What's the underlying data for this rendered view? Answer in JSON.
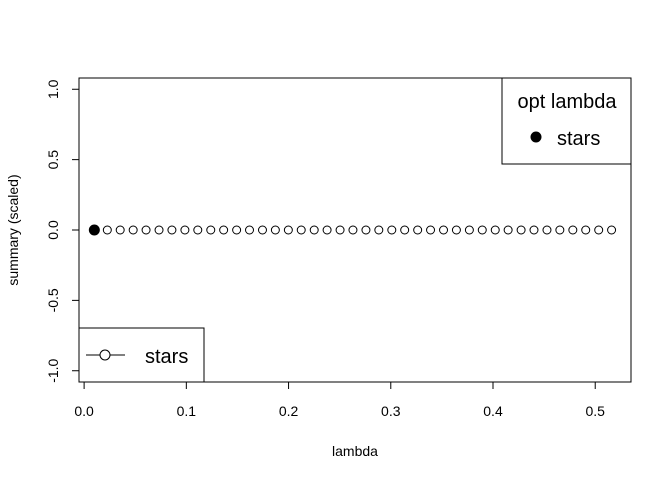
{
  "chart_data": {
    "type": "scatter",
    "xlabel": "lambda",
    "ylabel": "summary (scaled)",
    "xlim": [
      -0.005,
      0.535
    ],
    "ylim": [
      -1.08,
      1.08
    ],
    "x_ticks": [
      0.0,
      0.1,
      0.2,
      0.3,
      0.4,
      0.5
    ],
    "x_tick_labels": [
      "0.0",
      "0.1",
      "0.2",
      "0.3",
      "0.4",
      "0.5"
    ],
    "y_ticks": [
      -1.0,
      -0.5,
      0.0,
      0.5,
      1.0
    ],
    "y_tick_labels": [
      "-1.0",
      "-0.5",
      "0.0",
      "0.5",
      "1.0"
    ],
    "grid": false,
    "series": [
      {
        "name": "stars",
        "marker": "open-circle",
        "line": "none",
        "x": [
          0.01,
          0.0227,
          0.0353,
          0.048,
          0.0606,
          0.0733,
          0.0859,
          0.0986,
          0.1112,
          0.1239,
          0.1365,
          0.1492,
          0.1618,
          0.1745,
          0.1871,
          0.1998,
          0.2124,
          0.2251,
          0.2377,
          0.2504,
          0.263,
          0.2757,
          0.2883,
          0.301,
          0.3136,
          0.3263,
          0.3389,
          0.3516,
          0.3642,
          0.3769,
          0.3895,
          0.4022,
          0.4148,
          0.4275,
          0.4401,
          0.4528,
          0.4654,
          0.4781,
          0.4907,
          0.5034,
          0.516
        ],
        "y": [
          0,
          0,
          0,
          0,
          0,
          0,
          0,
          0,
          0,
          0,
          0,
          0,
          0,
          0,
          0,
          0,
          0,
          0,
          0,
          0,
          0,
          0,
          0,
          0,
          0,
          0,
          0,
          0,
          0,
          0,
          0,
          0,
          0,
          0,
          0,
          0,
          0,
          0,
          0,
          0,
          0
        ]
      }
    ],
    "optimum": {
      "name": "stars",
      "x": 0.01,
      "y": 0,
      "marker": "filled-circle"
    },
    "legends": [
      {
        "placement": "top-right",
        "title": "opt lambda",
        "entries": [
          {
            "label": "stars",
            "symbol": "filled-circle"
          }
        ]
      },
      {
        "placement": "bottom-left",
        "title": "",
        "entries": [
          {
            "label": "stars",
            "symbol": "open-circle-with-line"
          }
        ]
      }
    ],
    "colors": {
      "marker": "#000000",
      "axis": "#000000",
      "background": "#ffffff"
    }
  }
}
